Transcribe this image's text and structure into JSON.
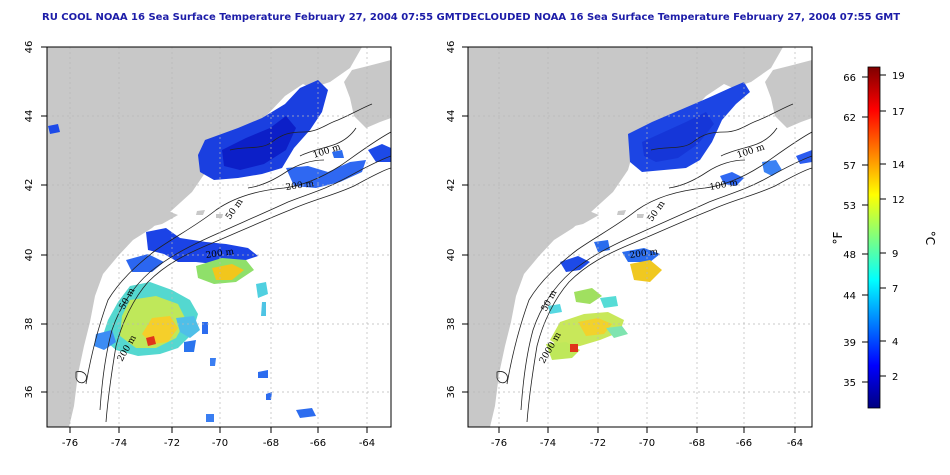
{
  "panels": [
    {
      "id": "left",
      "title": "RU COOL NOAA 16 Sea Surface Temperature February 27, 2004 07:55 GMT",
      "contour_labels": [
        "100 m",
        "200 m",
        "50 m",
        "200 m",
        "50 m",
        "200 m"
      ]
    },
    {
      "id": "right",
      "title": "DECLOUDED NOAA 16 Sea Surface Temperature February 27, 2004 07:55 GMT",
      "contour_labels": [
        "100 m",
        "100 m",
        "50 m",
        "200 m",
        "50 m",
        "2000 m"
      ]
    }
  ],
  "map": {
    "lon_ticks": [
      "-76",
      "-74",
      "-72",
      "-70",
      "-68",
      "-66",
      "-64"
    ],
    "lat_ticks": [
      "46",
      "44",
      "42",
      "40",
      "38",
      "36"
    ],
    "lon_range": [
      -77.2,
      -62.8
    ],
    "lat_range": [
      35.0,
      46.0
    ],
    "grid": true,
    "land_color": "#c8c8c8",
    "sea_color": "#ffffff"
  },
  "colorbar": {
    "fahrenheit_label": "°F",
    "celsius_label": "°C",
    "fahrenheit_ticks": [
      "66",
      "62",
      "57",
      "53",
      "48",
      "44",
      "39",
      "35"
    ],
    "celsius_ticks": [
      "19",
      "17",
      "14",
      "12",
      "9",
      "7",
      "4",
      "2"
    ],
    "colors": [
      "#00007f",
      "#0000ff",
      "#007fff",
      "#00ffff",
      "#7fff7f",
      "#ffff00",
      "#ff7f00",
      "#ff0000",
      "#7f0000"
    ]
  }
}
